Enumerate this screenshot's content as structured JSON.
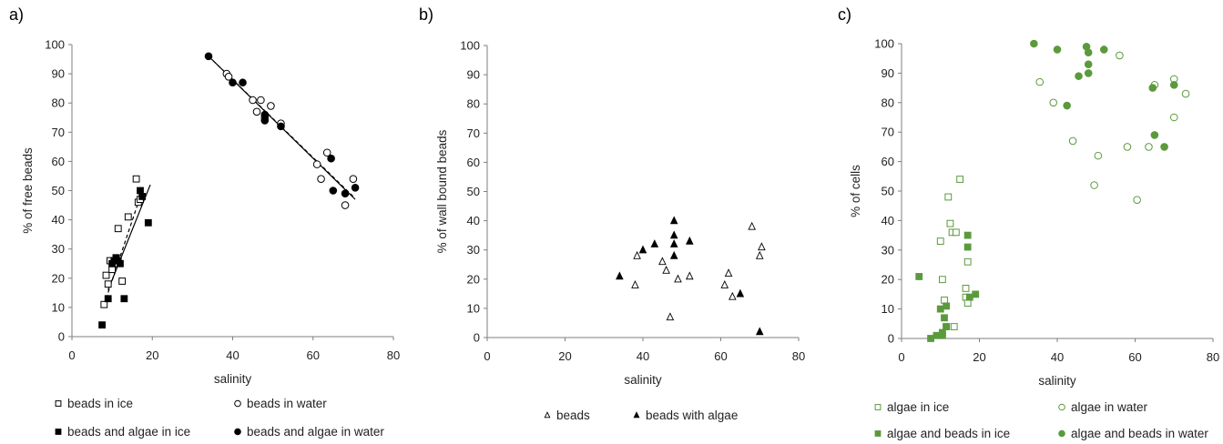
{
  "colors": {
    "black": "#000000",
    "green": "#5b9a3c",
    "axis": "#7f7f7f"
  },
  "chart_data": [
    {
      "type": "scatter",
      "panel_label": "a)",
      "xlabel": "salinity",
      "ylabel": "% of free beads",
      "xlim": [
        0,
        80
      ],
      "ylim": [
        0,
        100
      ],
      "x_ticks": [
        "0",
        "20",
        "40",
        "60",
        "80"
      ],
      "y_ticks": [
        "0",
        "10",
        "20",
        "30",
        "40",
        "50",
        "60",
        "70",
        "80",
        "90",
        "100"
      ],
      "legend_placement": "bottom",
      "series": [
        {
          "name": "beads in ice",
          "marker": "square-open",
          "color": "#000000",
          "points": [
            [
              8,
              11
            ],
            [
              8.5,
              21
            ],
            [
              9,
              18
            ],
            [
              9.5,
              26
            ],
            [
              10,
              23
            ],
            [
              10.5,
              25
            ],
            [
              11,
              27
            ],
            [
              11.5,
              37
            ],
            [
              12.5,
              19
            ],
            [
              14,
              41
            ],
            [
              16,
              54
            ],
            [
              16.5,
              46
            ],
            [
              17,
              47
            ]
          ]
        },
        {
          "name": "beads in water",
          "marker": "circle-open",
          "color": "#000000",
          "points": [
            [
              38.5,
              90
            ],
            [
              39,
              89
            ],
            [
              45,
              81
            ],
            [
              46,
              77
            ],
            [
              47,
              81
            ],
            [
              48,
              75
            ],
            [
              49.5,
              79
            ],
            [
              52,
              73
            ],
            [
              61,
              59
            ],
            [
              62,
              54
            ],
            [
              63.5,
              63
            ],
            [
              68,
              45
            ],
            [
              70,
              54
            ]
          ]
        },
        {
          "name": "beads and algae in ice",
          "marker": "square-filled",
          "color": "#000000",
          "points": [
            [
              7.5,
              4
            ],
            [
              9,
              13
            ],
            [
              10,
              25
            ],
            [
              10.5,
              26
            ],
            [
              11,
              27
            ],
            [
              11.5,
              26
            ],
            [
              12,
              25
            ],
            [
              13,
              13
            ],
            [
              17,
              50
            ],
            [
              17.5,
              48
            ],
            [
              19,
              39
            ]
          ]
        },
        {
          "name": "beads and algae in water",
          "marker": "circle-filled",
          "color": "#000000",
          "points": [
            [
              34,
              96
            ],
            [
              40,
              87
            ],
            [
              42.5,
              87
            ],
            [
              48,
              76
            ],
            [
              48,
              74
            ],
            [
              52,
              72
            ],
            [
              64.5,
              61
            ],
            [
              65,
              50
            ],
            [
              68,
              49
            ],
            [
              70.5,
              51
            ]
          ]
        }
      ],
      "trendlines": [
        {
          "series": "beads in ice",
          "style": "dashed",
          "from": [
            8,
            11
          ],
          "to": [
            17.5,
            50
          ]
        },
        {
          "series": "beads and algae in ice",
          "style": "solid",
          "from": [
            9,
            16
          ],
          "to": [
            19.5,
            52
          ]
        },
        {
          "series": "beads in water",
          "style": "dashed",
          "from": [
            34,
            96
          ],
          "to": [
            70,
            48
          ]
        },
        {
          "series": "beads and algae in water",
          "style": "solid",
          "from": [
            34,
            96
          ],
          "to": [
            70.5,
            47
          ]
        }
      ]
    },
    {
      "type": "scatter",
      "panel_label": "b)",
      "xlabel": "salinity",
      "ylabel": "% of wall bound beads",
      "xlim": [
        0,
        80
      ],
      "ylim": [
        0,
        100
      ],
      "x_ticks": [
        "0",
        "20",
        "40",
        "60",
        "80"
      ],
      "y_ticks": [
        "0",
        "10",
        "20",
        "30",
        "40",
        "50",
        "60",
        "70",
        "80",
        "90",
        "100"
      ],
      "legend_placement": "bottom",
      "series": [
        {
          "name": "beads",
          "marker": "triangle-open",
          "color": "#000000",
          "points": [
            [
              38,
              18
            ],
            [
              38.5,
              28
            ],
            [
              45,
              26
            ],
            [
              46,
              23
            ],
            [
              47,
              7
            ],
            [
              49,
              20
            ],
            [
              52,
              21
            ],
            [
              61,
              18
            ],
            [
              62,
              22
            ],
            [
              63,
              14
            ],
            [
              68,
              38
            ],
            [
              70,
              28
            ],
            [
              70.5,
              31
            ]
          ]
        },
        {
          "name": "beads with algae",
          "marker": "triangle-filled",
          "color": "#000000",
          "points": [
            [
              34,
              21
            ],
            [
              40,
              30
            ],
            [
              43,
              32
            ],
            [
              48,
              40
            ],
            [
              48,
              35
            ],
            [
              48,
              32
            ],
            [
              48,
              28
            ],
            [
              52,
              33
            ],
            [
              65,
              15
            ],
            [
              70,
              2
            ]
          ]
        }
      ]
    },
    {
      "type": "scatter",
      "panel_label": "c)",
      "xlabel": "salinity",
      "ylabel": "% of cells",
      "xlim": [
        0,
        80
      ],
      "ylim": [
        0,
        100
      ],
      "x_ticks": [
        "0",
        "20",
        "40",
        "60",
        "80"
      ],
      "y_ticks": [
        "0",
        "10",
        "20",
        "30",
        "40",
        "50",
        "60",
        "70",
        "80",
        "90",
        "100"
      ],
      "legend_placement": "bottom",
      "series": [
        {
          "name": "algae in ice",
          "marker": "square-open",
          "color": "#5b9a3c",
          "points": [
            [
              10,
              33
            ],
            [
              10.5,
              20
            ],
            [
              11,
              13
            ],
            [
              11.5,
              4
            ],
            [
              12,
              48
            ],
            [
              12.5,
              39
            ],
            [
              13,
              36
            ],
            [
              13.5,
              4
            ],
            [
              14,
              36
            ],
            [
              15,
              54
            ],
            [
              16.5,
              17
            ],
            [
              16.5,
              14
            ],
            [
              17,
              26
            ],
            [
              17,
              12
            ]
          ]
        },
        {
          "name": "algae in water",
          "marker": "circle-open",
          "color": "#5b9a3c",
          "points": [
            [
              35.5,
              87
            ],
            [
              39,
              80
            ],
            [
              44,
              67
            ],
            [
              49.5,
              52
            ],
            [
              50.5,
              62
            ],
            [
              56,
              96
            ],
            [
              58,
              65
            ],
            [
              60.5,
              47
            ],
            [
              63.5,
              65
            ],
            [
              65,
              86
            ],
            [
              70,
              88
            ],
            [
              70,
              75
            ],
            [
              73,
              83
            ]
          ]
        },
        {
          "name": "algae and beads in ice",
          "marker": "square-filled",
          "color": "#5b9a3c",
          "points": [
            [
              4.5,
              21
            ],
            [
              7.5,
              0
            ],
            [
              9,
              1
            ],
            [
              10,
              10
            ],
            [
              10.5,
              2
            ],
            [
              10.5,
              1
            ],
            [
              11,
              7
            ],
            [
              11.5,
              11
            ],
            [
              11.5,
              4
            ],
            [
              17,
              35
            ],
            [
              17,
              31
            ],
            [
              17.5,
              14
            ],
            [
              19,
              15
            ]
          ]
        },
        {
          "name": "algae and beads in water",
          "marker": "circle-filled",
          "color": "#5b9a3c",
          "points": [
            [
              34,
              100
            ],
            [
              40,
              98
            ],
            [
              42.5,
              79
            ],
            [
              45.5,
              89
            ],
            [
              47.5,
              99
            ],
            [
              48,
              97
            ],
            [
              48,
              93
            ],
            [
              48,
              90
            ],
            [
              52,
              98
            ],
            [
              64.5,
              85
            ],
            [
              65,
              69
            ],
            [
              67.5,
              65
            ],
            [
              70,
              86
            ]
          ]
        }
      ]
    }
  ]
}
